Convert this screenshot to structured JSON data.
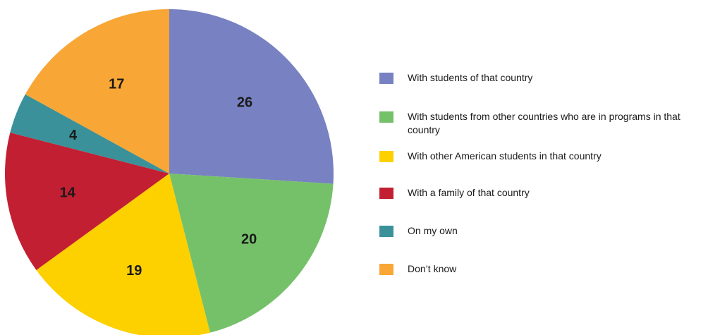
{
  "chart_data": {
    "type": "pie",
    "title": "",
    "slices": [
      {
        "label": "With students of that country",
        "value": 26,
        "color": "#7881C1"
      },
      {
        "label": "With students from other countries who are in programs in that country",
        "value": 20,
        "color": "#75C16A"
      },
      {
        "label": "With other American students in that country",
        "value": 19,
        "color": "#FDD000"
      },
      {
        "label": "With a family of that country",
        "value": 14,
        "color": "#C21F32"
      },
      {
        "label": "On my own",
        "value": 4,
        "color": "#3A9199"
      },
      {
        "label": "Don’t know",
        "value": 17,
        "color": "#F8A635"
      }
    ],
    "start_angle": "12 o'clock",
    "direction": "clockwise",
    "legend_position": "right"
  }
}
